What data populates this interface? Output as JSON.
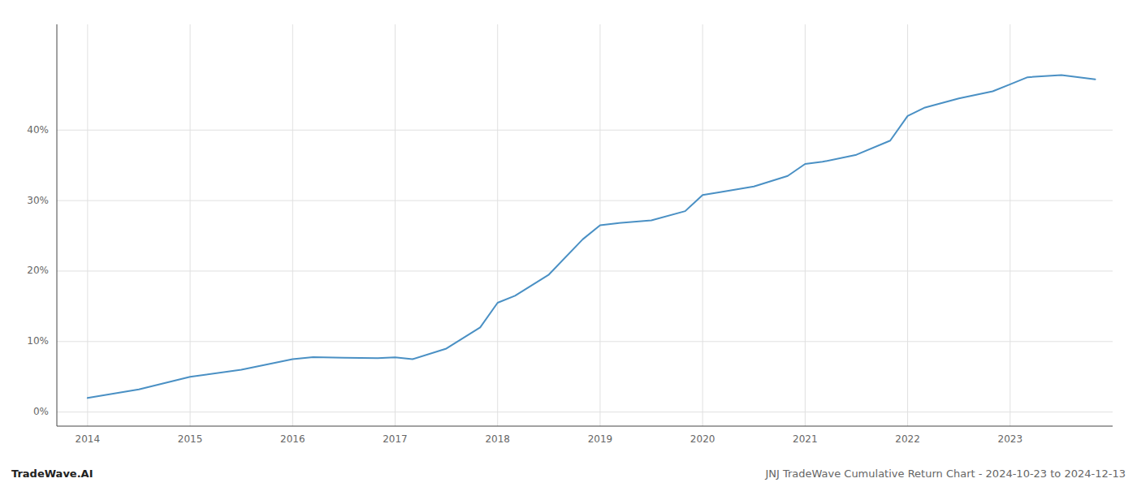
{
  "chart_data": {
    "type": "line",
    "title": "JNJ TradeWave Cumulative Return Chart - 2024-10-23 to 2024-12-13",
    "annotations": [
      "TradeWave.AI"
    ],
    "x": [
      2014.0,
      2014.5,
      2015.0,
      2015.5,
      2016.0,
      2016.2,
      2016.5,
      2016.83,
      2017.0,
      2017.17,
      2017.5,
      2017.83,
      2018.0,
      2018.17,
      2018.5,
      2018.83,
      2019.0,
      2019.17,
      2019.5,
      2019.83,
      2020.0,
      2020.17,
      2020.5,
      2020.83,
      2021.0,
      2021.17,
      2021.5,
      2021.83,
      2022.0,
      2022.17,
      2022.5,
      2022.83,
      2023.0,
      2023.17,
      2023.5,
      2023.83
    ],
    "values": [
      2.0,
      3.2,
      5.0,
      6.0,
      7.5,
      7.8,
      7.7,
      7.65,
      7.75,
      7.5,
      9.0,
      12.0,
      15.5,
      16.5,
      19.5,
      24.5,
      26.5,
      26.8,
      27.2,
      28.5,
      30.8,
      31.2,
      32.0,
      33.5,
      35.2,
      35.5,
      36.5,
      38.5,
      42.0,
      43.2,
      44.5,
      45.5,
      46.5,
      47.5,
      47.8,
      47.2
    ],
    "color": "#4a90c4",
    "xlim": [
      2013.7,
      2024.0
    ],
    "ylim": [
      -2,
      55
    ],
    "xticks": [
      2014,
      2015,
      2016,
      2017,
      2018,
      2019,
      2020,
      2021,
      2022,
      2023
    ],
    "yticks": [
      {
        "value": 0,
        "label": "0%"
      },
      {
        "value": 10,
        "label": "10%"
      },
      {
        "value": 20,
        "label": "20%"
      },
      {
        "value": 30,
        "label": "30%"
      },
      {
        "value": 40,
        "label": "40%"
      }
    ],
    "grid": true
  }
}
